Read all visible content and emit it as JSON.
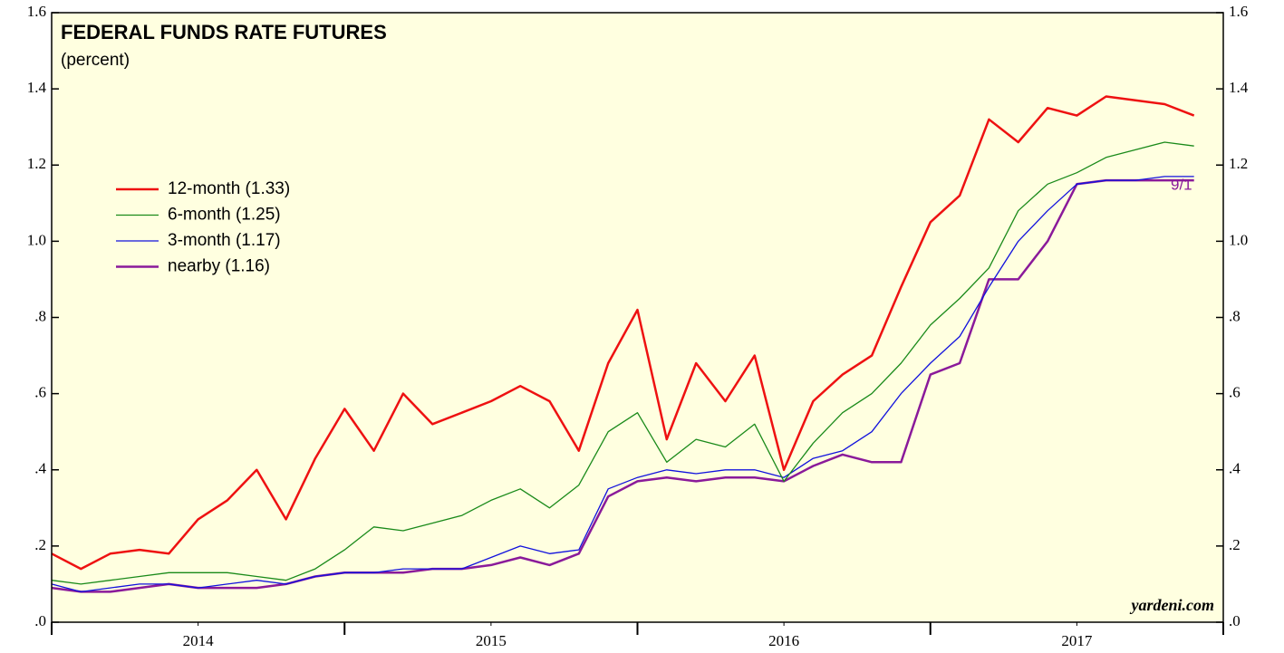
{
  "chart_data": {
    "type": "line",
    "title": "FEDERAL FUNDS RATE FUTURES",
    "subtitle": "(percent)",
    "source": "yardeni.com",
    "annotation": "9/1",
    "background": "#ffffe0",
    "xlim": [
      2014,
      2018
    ],
    "xticks": [
      {
        "value": 2014.5,
        "label": "2014"
      },
      {
        "value": 2015.5,
        "label": "2015"
      },
      {
        "value": 2016.5,
        "label": "2016"
      },
      {
        "value": 2017.5,
        "label": "2017"
      }
    ],
    "ylim": [
      0,
      1.6
    ],
    "yticks": [
      {
        "value": 0,
        "label": ".0"
      },
      {
        "value": 0.2,
        "label": ".2"
      },
      {
        "value": 0.4,
        "label": ".4"
      },
      {
        "value": 0.6,
        "label": ".6"
      },
      {
        "value": 0.8,
        "label": ".8"
      },
      {
        "value": 1.0,
        "label": "1.0"
      },
      1.2,
      1.4,
      1.6
    ],
    "x": [
      2014.0,
      2014.1,
      2014.2,
      2014.3,
      2014.4,
      2014.5,
      2014.6,
      2014.7,
      2014.8,
      2014.9,
      2015.0,
      2015.1,
      2015.2,
      2015.3,
      2015.4,
      2015.5,
      2015.6,
      2015.7,
      2015.8,
      2015.9,
      2016.0,
      2016.1,
      2016.2,
      2016.3,
      2016.4,
      2016.5,
      2016.6,
      2016.7,
      2016.8,
      2016.9,
      2017.0,
      2017.1,
      2017.2,
      2017.3,
      2017.4,
      2017.5,
      2017.6,
      2017.7,
      2017.8,
      2017.9
    ],
    "series": [
      {
        "name": "12-month (1.33)",
        "color": "#ee1111",
        "width": 2.5,
        "values": [
          0.18,
          0.14,
          0.18,
          0.19,
          0.18,
          0.27,
          0.32,
          0.4,
          0.27,
          0.43,
          0.56,
          0.45,
          0.6,
          0.52,
          0.55,
          0.58,
          0.62,
          0.58,
          0.45,
          0.68,
          0.82,
          0.48,
          0.68,
          0.58,
          0.7,
          0.4,
          0.58,
          0.65,
          0.7,
          0.88,
          1.05,
          1.12,
          1.32,
          1.26,
          1.35,
          1.33,
          1.38,
          1.37,
          1.36,
          1.33
        ]
      },
      {
        "name": "6-month (1.25)",
        "color": "#1a8a1a",
        "width": 1.3,
        "values": [
          0.11,
          0.1,
          0.11,
          0.12,
          0.13,
          0.13,
          0.13,
          0.12,
          0.11,
          0.14,
          0.19,
          0.25,
          0.24,
          0.26,
          0.28,
          0.32,
          0.35,
          0.3,
          0.36,
          0.5,
          0.55,
          0.42,
          0.48,
          0.46,
          0.52,
          0.37,
          0.47,
          0.55,
          0.6,
          0.68,
          0.78,
          0.85,
          0.93,
          1.08,
          1.15,
          1.18,
          1.22,
          1.24,
          1.26,
          1.25
        ]
      },
      {
        "name": "3-month (1.17)",
        "color": "#1111dd",
        "width": 1.3,
        "values": [
          0.1,
          0.08,
          0.09,
          0.1,
          0.1,
          0.09,
          0.1,
          0.11,
          0.1,
          0.12,
          0.13,
          0.13,
          0.14,
          0.14,
          0.14,
          0.17,
          0.2,
          0.18,
          0.19,
          0.35,
          0.38,
          0.4,
          0.39,
          0.4,
          0.4,
          0.38,
          0.43,
          0.45,
          0.5,
          0.6,
          0.68,
          0.75,
          0.88,
          1.0,
          1.08,
          1.15,
          1.16,
          1.16,
          1.17,
          1.17
        ]
      },
      {
        "name": "nearby (1.16)",
        "color": "#8a1a9a",
        "width": 2.5,
        "values": [
          0.09,
          0.08,
          0.08,
          0.09,
          0.1,
          0.09,
          0.09,
          0.09,
          0.1,
          0.12,
          0.13,
          0.13,
          0.13,
          0.14,
          0.14,
          0.15,
          0.17,
          0.15,
          0.18,
          0.33,
          0.37,
          0.38,
          0.37,
          0.38,
          0.38,
          0.37,
          0.41,
          0.44,
          0.42,
          0.42,
          0.65,
          0.68,
          0.9,
          0.9,
          1.0,
          1.15,
          1.16,
          1.16,
          1.16,
          1.16
        ]
      }
    ]
  }
}
